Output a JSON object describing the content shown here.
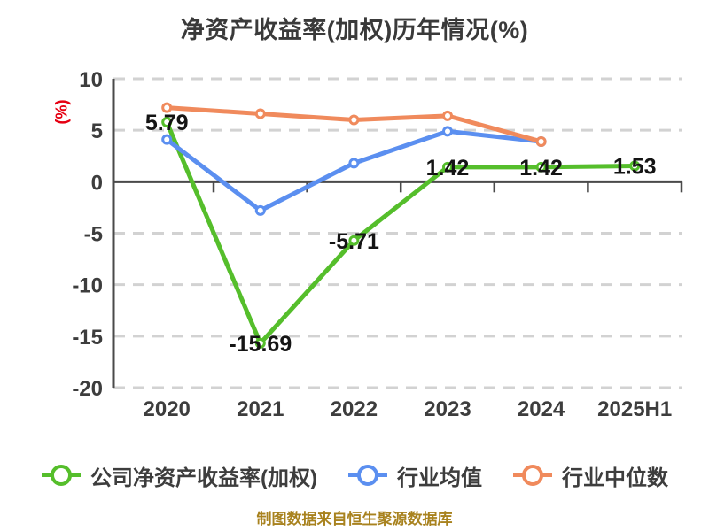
{
  "chart_data": {
    "type": "line",
    "title": "净资产收益率(加权)历年情况(%)",
    "ylabel": "(%)",
    "footnote": "制图数据来自恒生聚源数据库",
    "categories": [
      "2020",
      "2021",
      "2022",
      "2023",
      "2024",
      "2025H1"
    ],
    "y_ticks": [
      10,
      5,
      0,
      -5,
      -10,
      -15,
      -20
    ],
    "ylim": [
      -20,
      10
    ],
    "grid": "horizontal-dashed",
    "legend_position": "bottom",
    "series": [
      {
        "name": "公司净资产收益率(加权)",
        "color": "#55be2b",
        "values": [
          5.79,
          -15.69,
          -5.71,
          1.42,
          1.42,
          1.53
        ],
        "point_labels": [
          "5.79",
          "-15.69",
          "-5.71",
          "1.42",
          "1.42",
          "1.53"
        ]
      },
      {
        "name": "行业均值",
        "color": "#5b8ff0",
        "values": [
          4.1,
          -2.8,
          1.8,
          4.9,
          3.9,
          null
        ],
        "point_labels": null
      },
      {
        "name": "行业中位数",
        "color": "#f08a5c",
        "values": [
          7.2,
          6.6,
          6.0,
          6.4,
          3.9,
          null
        ],
        "point_labels": null
      }
    ],
    "colors": {
      "background": "#ffffff",
      "axis": "#4a4a4a",
      "grid": "#d2d2d2",
      "tick_label": "#3d3d3d",
      "value_label": "#141414",
      "title": "#3a3a3a",
      "ylabel": "#e60012",
      "footnote": "#a8821e",
      "marker_fill": "#ffffff"
    }
  }
}
